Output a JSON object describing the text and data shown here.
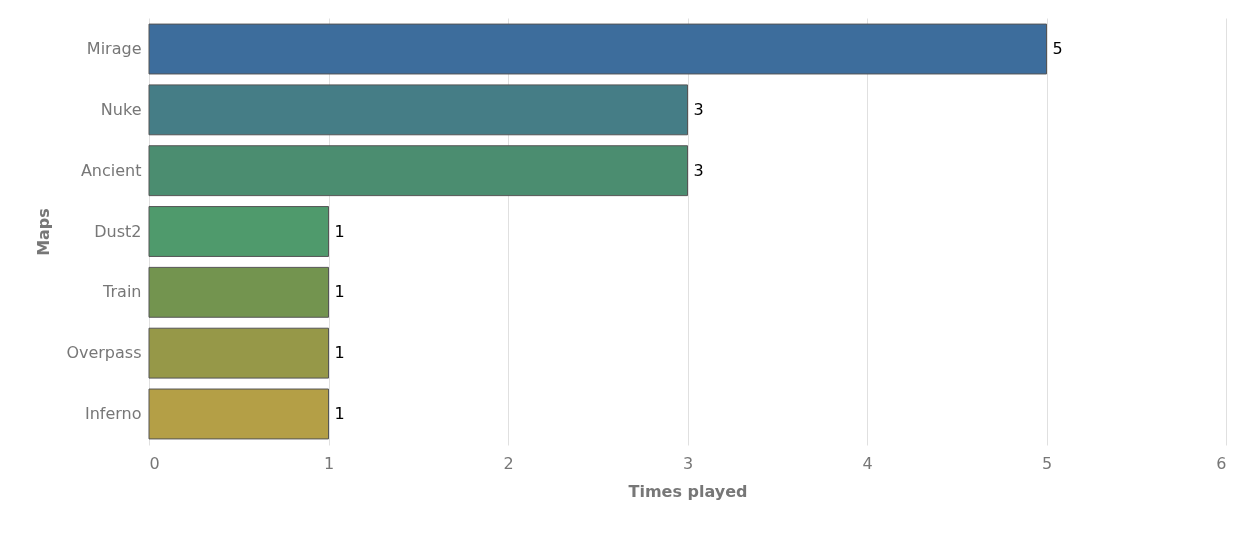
{
  "chart_data": {
    "type": "bar",
    "orientation": "horizontal",
    "xlabel": "Times played",
    "ylabel": "Maps",
    "categories": [
      "Mirage",
      "Nuke",
      "Ancient",
      "Dust2",
      "Train",
      "Overpass",
      "Inferno"
    ],
    "values": [
      5,
      3,
      3,
      1,
      1,
      1,
      1
    ],
    "colors": [
      "#3d6d9c",
      "#457d86",
      "#4b8d70",
      "#4f9a6c",
      "#73944f",
      "#969848",
      "#b49f46"
    ],
    "xlim": [
      0,
      6
    ],
    "xticks": [
      0,
      1,
      2,
      3,
      4,
      5,
      6
    ],
    "grid": "x",
    "data_labels": true
  }
}
